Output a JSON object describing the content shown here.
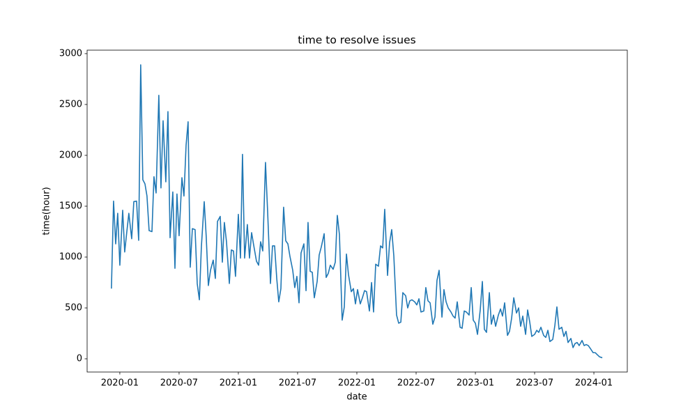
{
  "chart_data": {
    "type": "line",
    "title": "time to resolve issues",
    "x_label": "date",
    "y_label": "time(hour)",
    "color": "#1f77b4",
    "x": [
      2019.929,
      2019.947,
      2019.965,
      2019.982,
      2020.0,
      2020.024,
      2020.041,
      2020.059,
      2020.076,
      2020.1,
      2020.118,
      2020.141,
      2020.159,
      2020.176,
      2020.194,
      2020.212,
      2020.229,
      2020.247,
      2020.271,
      2020.288,
      2020.306,
      2020.329,
      2020.347,
      2020.365,
      2020.388,
      2020.406,
      2020.424,
      2020.447,
      2020.465,
      2020.482,
      2020.5,
      2020.524,
      2020.541,
      2020.559,
      2020.576,
      2020.594,
      2020.612,
      2020.635,
      2020.653,
      2020.671,
      2020.688,
      2020.712,
      2020.729,
      2020.747,
      2020.765,
      2020.788,
      2020.806,
      2020.824,
      2020.847,
      2020.865,
      2020.882,
      2020.9,
      2020.924,
      2020.941,
      2020.959,
      2020.976,
      2021.0,
      2021.018,
      2021.035,
      2021.053,
      2021.076,
      2021.094,
      2021.112,
      2021.129,
      2021.153,
      2021.171,
      2021.188,
      2021.206,
      2021.229,
      2021.247,
      2021.271,
      2021.288,
      2021.306,
      2021.324,
      2021.341,
      2021.359,
      2021.382,
      2021.4,
      2021.418,
      2021.435,
      2021.459,
      2021.476,
      2021.494,
      2021.512,
      2021.529,
      2021.553,
      2021.571,
      2021.588,
      2021.606,
      2021.624,
      2021.641,
      2021.665,
      2021.682,
      2021.7,
      2021.724,
      2021.741,
      2021.759,
      2021.776,
      2021.8,
      2021.818,
      2021.835,
      2021.853,
      2021.876,
      2021.894,
      2021.912,
      2021.929,
      2021.953,
      2021.971,
      2021.988,
      2022.006,
      2022.029,
      2022.047,
      2022.065,
      2022.082,
      2022.106,
      2022.124,
      2022.141,
      2022.159,
      2022.182,
      2022.2,
      2022.218,
      2022.235,
      2022.259,
      2022.276,
      2022.294,
      2022.312,
      2022.335,
      2022.353,
      2022.371,
      2022.388,
      2022.412,
      2022.429,
      2022.447,
      2022.465,
      2022.488,
      2022.506,
      2022.524,
      2022.541,
      2022.565,
      2022.582,
      2022.6,
      2022.618,
      2022.641,
      2022.659,
      2022.676,
      2022.694,
      2022.718,
      2022.735,
      2022.753,
      2022.771,
      2022.794,
      2022.812,
      2022.829,
      2022.847,
      2022.871,
      2022.888,
      2022.906,
      2022.924,
      2022.947,
      2022.965,
      2022.982,
      2023.0,
      2023.018,
      2023.041,
      2023.059,
      2023.076,
      2023.094,
      2023.118,
      2023.135,
      2023.153,
      2023.171,
      2023.194,
      2023.212,
      2023.229,
      2023.247,
      2023.271,
      2023.288,
      2023.306,
      2023.324,
      2023.347,
      2023.365,
      2023.382,
      2023.4,
      2023.424,
      2023.441,
      2023.459,
      2023.476,
      2023.5,
      2023.518,
      2023.535,
      2023.553,
      2023.576,
      2023.594,
      2023.612,
      2023.629,
      2023.653,
      2023.671,
      2023.688,
      2023.706,
      2023.729,
      2023.747,
      2023.765,
      2023.782,
      2023.806,
      2023.824,
      2023.841,
      2023.859,
      2023.876,
      2023.9,
      2023.918,
      2023.935,
      2023.953,
      2023.971,
      2023.994,
      2024.012,
      2024.029,
      2024.047,
      2024.071
    ],
    "values": [
      690,
      1550,
      1130,
      1430,
      920,
      1460,
      1050,
      1250,
      1430,
      1180,
      1545,
      1550,
      1165,
      2890,
      1760,
      1720,
      1600,
      1260,
      1250,
      1790,
      1630,
      2590,
      1680,
      2340,
      1740,
      2430,
      1190,
      1640,
      890,
      1620,
      1210,
      1780,
      1600,
      2100,
      2330,
      900,
      1280,
      1270,
      740,
      580,
      1100,
      1545,
      1200,
      720,
      870,
      970,
      790,
      1350,
      1400,
      950,
      1340,
      1150,
      740,
      1070,
      1060,
      810,
      1420,
      990,
      2010,
      990,
      1320,
      990,
      1240,
      1120,
      960,
      920,
      1150,
      1060,
      1930,
      1450,
      740,
      1110,
      1110,
      790,
      560,
      690,
      1490,
      1160,
      1130,
      1010,
      870,
      700,
      810,
      550,
      1040,
      1130,
      670,
      1340,
      860,
      850,
      600,
      760,
      1020,
      1100,
      1230,
      800,
      840,
      920,
      880,
      950,
      1410,
      1220,
      380,
      510,
      1030,
      830,
      660,
      690,
      540,
      680,
      540,
      600,
      670,
      660,
      470,
      750,
      460,
      930,
      910,
      1110,
      1090,
      1470,
      820,
      1140,
      1270,
      1010,
      430,
      350,
      360,
      650,
      620,
      500,
      570,
      580,
      560,
      530,
      590,
      460,
      470,
      700,
      570,
      550,
      340,
      410,
      770,
      870,
      410,
      680,
      560,
      500,
      460,
      420,
      400,
      560,
      310,
      300,
      470,
      460,
      430,
      700,
      380,
      350,
      240,
      480,
      760,
      290,
      260,
      650,
      340,
      430,
      320,
      430,
      490,
      420,
      550,
      230,
      270,
      400,
      600,
      450,
      500,
      320,
      420,
      240,
      480,
      360,
      220,
      240,
      280,
      260,
      310,
      230,
      210,
      280,
      170,
      190,
      330,
      510,
      290,
      310,
      220,
      270,
      160,
      200,
      110,
      150,
      160,
      130,
      180,
      130,
      140,
      130,
      100,
      60,
      60,
      40,
      20,
      10
    ],
    "xlim": [
      2019.724,
      2024.282
    ],
    "xticks": [
      {
        "value": 2020.0,
        "label": "2020-01"
      },
      {
        "value": 2020.5,
        "label": "2020-07"
      },
      {
        "value": 2021.0,
        "label": "2021-01"
      },
      {
        "value": 2021.5,
        "label": "2021-07"
      },
      {
        "value": 2022.0,
        "label": "2022-01"
      },
      {
        "value": 2022.5,
        "label": "2022-07"
      },
      {
        "value": 2023.0,
        "label": "2023-01"
      },
      {
        "value": 2023.5,
        "label": "2023-07"
      },
      {
        "value": 2024.0,
        "label": "2024-01"
      }
    ],
    "ylim": [
      -130,
      3034
    ],
    "yticks": [
      0,
      500,
      1000,
      1500,
      2000,
      2500,
      3000
    ]
  }
}
